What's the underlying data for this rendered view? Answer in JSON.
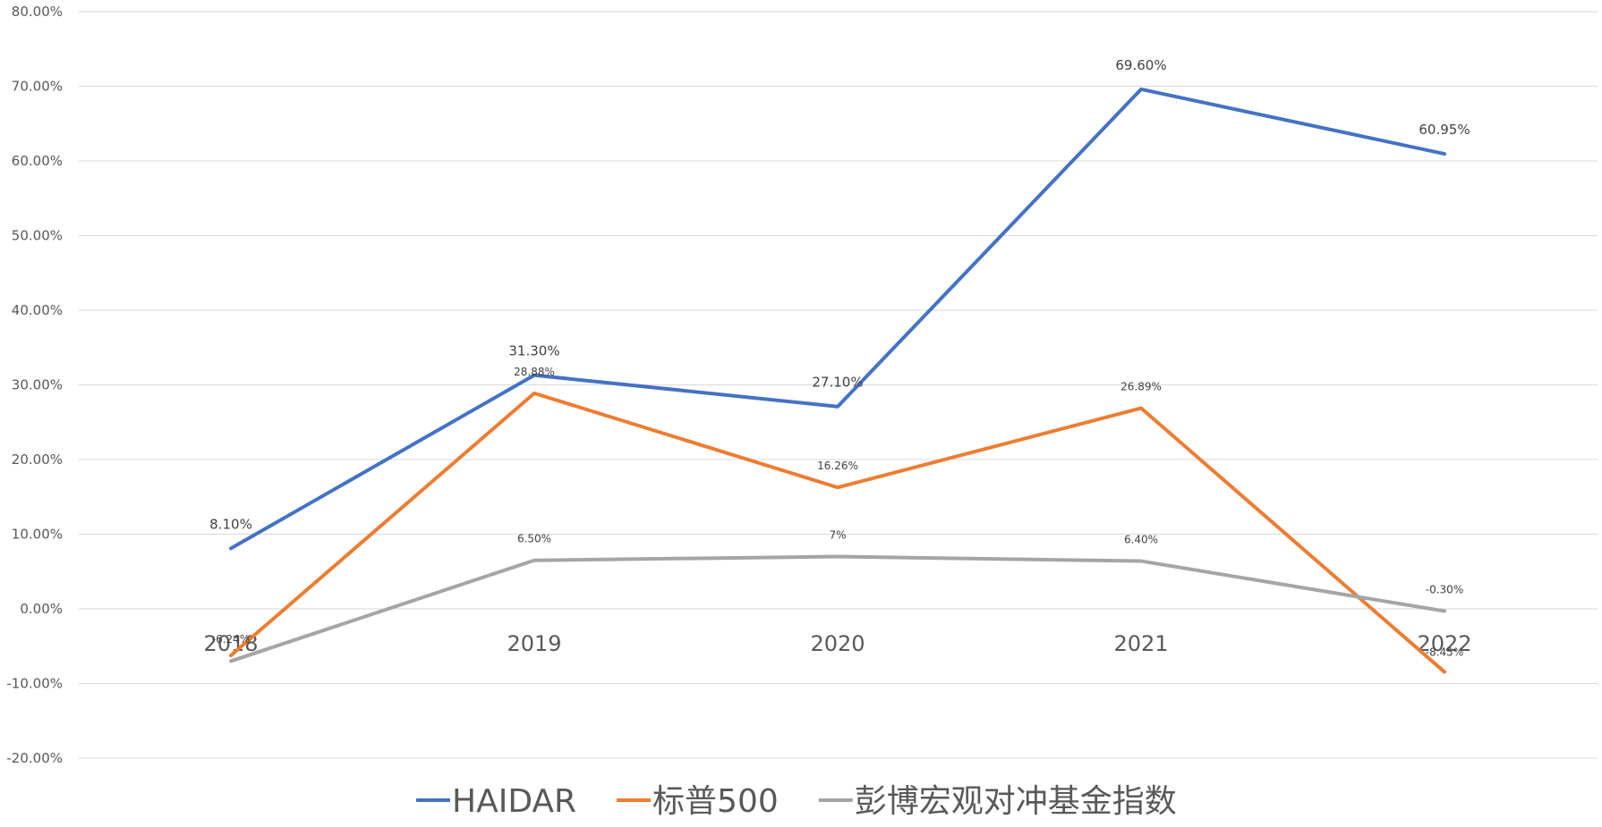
{
  "chart_data": {
    "type": "line",
    "title": "",
    "xlabel": "",
    "ylabel": "",
    "categories": [
      "2018",
      "2019",
      "2020",
      "2021",
      "2022"
    ],
    "ylim": [
      -0.2,
      0.8
    ],
    "yticks": [
      0.8,
      0.7,
      0.6,
      0.5,
      0.4,
      0.3,
      0.2,
      0.1,
      0.0,
      -0.1,
      -0.2
    ],
    "ytick_labels": [
      "80.00%",
      "70.00%",
      "60.00%",
      "50.00%",
      "40.00%",
      "30.00%",
      "20.00%",
      "10.00%",
      "0.00%",
      "-10.00%",
      "-20.00%"
    ],
    "grid": true,
    "legend_position": "bottom",
    "series": [
      {
        "name": "HAIDAR",
        "color": "#4472C4",
        "values": [
          0.081,
          0.313,
          0.271,
          0.696,
          0.6095
        ],
        "labels": [
          "8.10%",
          "31.30%",
          "27.10%",
          "69.60%",
          "60.95%"
        ]
      },
      {
        "name": "标普500",
        "color": "#ED7D31",
        "values": [
          -0.0624,
          0.2888,
          0.1626,
          0.2689,
          -0.0845
        ],
        "labels": [
          "-6.24%",
          "28.88%",
          "16.26%",
          "26.89%",
          "-8.45%"
        ]
      },
      {
        "name": "彭博宏观对冲基金指数",
        "color": "#A5A5A5",
        "values": [
          -0.07,
          0.065,
          0.07,
          0.064,
          -0.003
        ],
        "labels": [
          "",
          "6.50%",
          "7%",
          "6.40%",
          "-0.30%"
        ]
      }
    ]
  }
}
